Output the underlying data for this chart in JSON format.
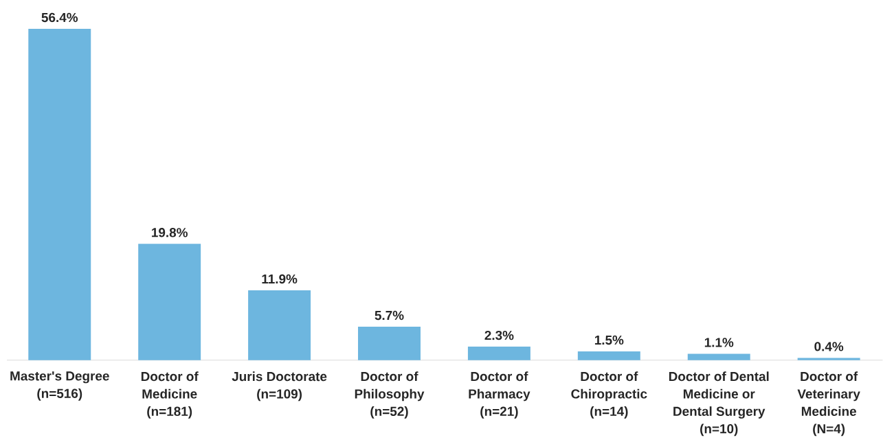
{
  "chart_data": {
    "type": "bar",
    "categories": [
      "Master's Degree\n(n=516)",
      "Doctor of\nMedicine\n(n=181)",
      "Juris Doctorate\n(n=109)",
      "Doctor of\nPhilosophy\n(n=52)",
      "Doctor of\nPharmacy\n(n=21)",
      "Doctor of\nChiropractic\n(n=14)",
      "Doctor of Dental\nMedicine or\nDental Surgery\n(n=10)",
      "Doctor of\nVeterinary\nMedicine\n(N=4)"
    ],
    "values": [
      56.4,
      19.8,
      11.9,
      5.7,
      2.3,
      1.5,
      1.1,
      0.4
    ],
    "value_labels": [
      "56.4%",
      "19.8%",
      "11.9%",
      "5.7%",
      "2.3%",
      "1.5%",
      "1.1%",
      "0.4%"
    ],
    "color": "#6db6df"
  }
}
